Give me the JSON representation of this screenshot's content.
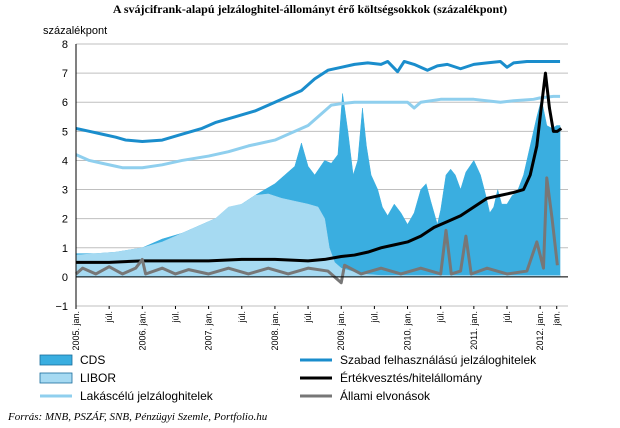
{
  "chart_data": {
    "type": "area",
    "title": "A svájcifrank-alapú jelzáloghitel-állományt érő költségsokkok (százalékpont)",
    "ylabel": "százalékpont",
    "ylim": [
      -1,
      8
    ],
    "yticks": [
      "8",
      "7",
      "6",
      "5",
      "4",
      "3",
      "2",
      "1",
      "0",
      "−1"
    ],
    "xlim": [
      2005.0,
      2012.42
    ],
    "xticks": [
      {
        "x": 2005.0,
        "label": "2005. jan."
      },
      {
        "x": 2005.5,
        "label": "júl."
      },
      {
        "x": 2006.0,
        "label": "2006. jan."
      },
      {
        "x": 2006.5,
        "label": "júl."
      },
      {
        "x": 2007.0,
        "label": "2007. jan."
      },
      {
        "x": 2007.5,
        "label": "júl."
      },
      {
        "x": 2008.0,
        "label": "2008. jan."
      },
      {
        "x": 2008.5,
        "label": "júl."
      },
      {
        "x": 2009.0,
        "label": "2009. jan."
      },
      {
        "x": 2009.5,
        "label": "júl."
      },
      {
        "x": 2010.0,
        "label": "2010. jan."
      },
      {
        "x": 2010.5,
        "label": "júl."
      },
      {
        "x": 2011.0,
        "label": "2011. jan."
      },
      {
        "x": 2011.5,
        "label": "júl."
      },
      {
        "x": 2012.0,
        "label": "2012. jan."
      },
      {
        "x": 2012.25,
        "label": "jan."
      }
    ],
    "grid": true,
    "legend_position": "bottom",
    "series": [
      {
        "name": "CDS",
        "kind": "area",
        "color": "#3aaee0",
        "points": [
          [
            2005.0,
            0.8
          ],
          [
            2005.3,
            0.8
          ],
          [
            2005.6,
            0.85
          ],
          [
            2006.0,
            1.0
          ],
          [
            2006.3,
            1.3
          ],
          [
            2006.6,
            1.5
          ],
          [
            2006.9,
            1.8
          ],
          [
            2007.1,
            2.0
          ],
          [
            2007.3,
            2.2
          ],
          [
            2007.5,
            2.5
          ],
          [
            2007.7,
            2.8
          ],
          [
            2007.85,
            3.0
          ],
          [
            2008.0,
            3.2
          ],
          [
            2008.15,
            3.5
          ],
          [
            2008.3,
            3.8
          ],
          [
            2008.4,
            4.6
          ],
          [
            2008.5,
            3.8
          ],
          [
            2008.6,
            3.5
          ],
          [
            2008.75,
            4.0
          ],
          [
            2008.85,
            3.9
          ],
          [
            2008.95,
            4.2
          ],
          [
            2009.02,
            6.3
          ],
          [
            2009.1,
            5.0
          ],
          [
            2009.18,
            3.5
          ],
          [
            2009.25,
            4.0
          ],
          [
            2009.32,
            5.8
          ],
          [
            2009.38,
            4.5
          ],
          [
            2009.45,
            3.5
          ],
          [
            2009.55,
            3.0
          ],
          [
            2009.62,
            2.4
          ],
          [
            2009.7,
            2.1
          ],
          [
            2009.8,
            2.5
          ],
          [
            2009.9,
            2.2
          ],
          [
            2010.0,
            1.8
          ],
          [
            2010.1,
            2.2
          ],
          [
            2010.2,
            3.0
          ],
          [
            2010.28,
            3.2
          ],
          [
            2010.35,
            2.6
          ],
          [
            2010.45,
            1.8
          ],
          [
            2010.5,
            2.3
          ],
          [
            2010.58,
            3.5
          ],
          [
            2010.65,
            3.7
          ],
          [
            2010.72,
            3.5
          ],
          [
            2010.8,
            3.0
          ],
          [
            2010.88,
            3.6
          ],
          [
            2011.0,
            4.0
          ],
          [
            2011.1,
            3.5
          ],
          [
            2011.18,
            2.8
          ],
          [
            2011.24,
            2.2
          ],
          [
            2011.3,
            2.4
          ],
          [
            2011.36,
            3.0
          ],
          [
            2011.42,
            2.5
          ],
          [
            2011.5,
            2.5
          ],
          [
            2011.58,
            2.8
          ],
          [
            2011.65,
            2.9
          ],
          [
            2011.75,
            3.5
          ],
          [
            2011.85,
            4.5
          ],
          [
            2011.95,
            5.5
          ],
          [
            2012.02,
            6.1
          ],
          [
            2012.1,
            5.2
          ],
          [
            2012.18,
            5.1
          ],
          [
            2012.25,
            5.2
          ],
          [
            2012.3,
            5.2
          ]
        ]
      },
      {
        "name": "LIBOR",
        "kind": "area",
        "color": "#a6daf2",
        "points": [
          [
            2005.0,
            0.75
          ],
          [
            2005.3,
            0.8
          ],
          [
            2005.6,
            0.85
          ],
          [
            2006.0,
            1.0
          ],
          [
            2006.3,
            1.2
          ],
          [
            2006.6,
            1.5
          ],
          [
            2006.9,
            1.8
          ],
          [
            2007.1,
            2.0
          ],
          [
            2007.3,
            2.4
          ],
          [
            2007.5,
            2.5
          ],
          [
            2007.7,
            2.8
          ],
          [
            2007.9,
            2.85
          ],
          [
            2008.1,
            2.7
          ],
          [
            2008.3,
            2.6
          ],
          [
            2008.5,
            2.5
          ],
          [
            2008.65,
            2.4
          ],
          [
            2008.75,
            2.0
          ],
          [
            2008.82,
            1.0
          ],
          [
            2008.9,
            0.5
          ],
          [
            2009.0,
            0.3
          ],
          [
            2009.3,
            0.1
          ],
          [
            2009.6,
            0.05
          ],
          [
            2010.0,
            0.05
          ],
          [
            2011.0,
            0.05
          ],
          [
            2012.0,
            0.05
          ],
          [
            2012.3,
            0.05
          ]
        ]
      },
      {
        "name": "Lakáscélú jelzáloghitelek",
        "kind": "line",
        "color": "#8fcfee",
        "points": [
          [
            2005.0,
            4.2
          ],
          [
            2005.2,
            4.0
          ],
          [
            2005.4,
            3.9
          ],
          [
            2005.6,
            3.8
          ],
          [
            2005.7,
            3.75
          ],
          [
            2006.0,
            3.75
          ],
          [
            2006.3,
            3.85
          ],
          [
            2006.6,
            4.0
          ],
          [
            2007.0,
            4.15
          ],
          [
            2007.3,
            4.3
          ],
          [
            2007.6,
            4.5
          ],
          [
            2008.0,
            4.7
          ],
          [
            2008.2,
            4.9
          ],
          [
            2008.5,
            5.2
          ],
          [
            2008.7,
            5.6
          ],
          [
            2008.85,
            5.9
          ],
          [
            2009.0,
            5.95
          ],
          [
            2009.2,
            6.0
          ],
          [
            2009.5,
            6.0
          ],
          [
            2010.0,
            6.0
          ],
          [
            2010.1,
            5.8
          ],
          [
            2010.2,
            6.0
          ],
          [
            2010.5,
            6.1
          ],
          [
            2011.0,
            6.1
          ],
          [
            2011.4,
            6.0
          ],
          [
            2011.6,
            6.05
          ],
          [
            2011.9,
            6.1
          ],
          [
            2012.0,
            6.15
          ],
          [
            2012.2,
            6.2
          ],
          [
            2012.3,
            6.2
          ]
        ]
      },
      {
        "name": "Szabad felhasználású jelzáloghitelek",
        "kind": "line",
        "color": "#1a8dcc",
        "points": [
          [
            2005.0,
            5.1
          ],
          [
            2005.2,
            5.0
          ],
          [
            2005.4,
            4.9
          ],
          [
            2005.6,
            4.8
          ],
          [
            2005.75,
            4.7
          ],
          [
            2006.0,
            4.65
          ],
          [
            2006.3,
            4.7
          ],
          [
            2006.6,
            4.9
          ],
          [
            2006.9,
            5.1
          ],
          [
            2007.1,
            5.3
          ],
          [
            2007.4,
            5.5
          ],
          [
            2007.7,
            5.7
          ],
          [
            2008.0,
            6.0
          ],
          [
            2008.2,
            6.2
          ],
          [
            2008.4,
            6.4
          ],
          [
            2008.6,
            6.8
          ],
          [
            2008.8,
            7.1
          ],
          [
            2009.0,
            7.2
          ],
          [
            2009.2,
            7.3
          ],
          [
            2009.4,
            7.35
          ],
          [
            2009.6,
            7.3
          ],
          [
            2009.7,
            7.4
          ],
          [
            2009.85,
            7.05
          ],
          [
            2009.95,
            7.4
          ],
          [
            2010.1,
            7.3
          ],
          [
            2010.3,
            7.1
          ],
          [
            2010.45,
            7.25
          ],
          [
            2010.6,
            7.3
          ],
          [
            2010.8,
            7.15
          ],
          [
            2011.0,
            7.3
          ],
          [
            2011.2,
            7.35
          ],
          [
            2011.4,
            7.4
          ],
          [
            2011.5,
            7.2
          ],
          [
            2011.6,
            7.35
          ],
          [
            2011.8,
            7.4
          ],
          [
            2012.0,
            7.4
          ],
          [
            2012.2,
            7.4
          ],
          [
            2012.3,
            7.4
          ]
        ]
      },
      {
        "name": "Értékvesztés/hitelállomány",
        "kind": "line",
        "color": "#000000",
        "points": [
          [
            2005.0,
            0.5
          ],
          [
            2005.5,
            0.5
          ],
          [
            2006.0,
            0.55
          ],
          [
            2006.5,
            0.55
          ],
          [
            2007.0,
            0.55
          ],
          [
            2007.5,
            0.6
          ],
          [
            2008.0,
            0.6
          ],
          [
            2008.5,
            0.55
          ],
          [
            2008.75,
            0.6
          ],
          [
            2009.0,
            0.7
          ],
          [
            2009.2,
            0.75
          ],
          [
            2009.4,
            0.85
          ],
          [
            2009.6,
            1.0
          ],
          [
            2009.8,
            1.1
          ],
          [
            2010.0,
            1.2
          ],
          [
            2010.2,
            1.4
          ],
          [
            2010.4,
            1.7
          ],
          [
            2010.6,
            1.9
          ],
          [
            2010.8,
            2.1
          ],
          [
            2011.0,
            2.4
          ],
          [
            2011.2,
            2.7
          ],
          [
            2011.4,
            2.8
          ],
          [
            2011.6,
            2.9
          ],
          [
            2011.75,
            3.0
          ],
          [
            2011.85,
            3.5
          ],
          [
            2011.95,
            4.5
          ],
          [
            2012.0,
            5.5
          ],
          [
            2012.08,
            7.0
          ],
          [
            2012.14,
            5.8
          ],
          [
            2012.2,
            5.0
          ],
          [
            2012.26,
            5.0
          ],
          [
            2012.32,
            5.1
          ]
        ]
      },
      {
        "name": "Állami elvonások",
        "kind": "line",
        "color": "#777777",
        "points": [
          [
            2005.0,
            0.1
          ],
          [
            2005.1,
            0.3
          ],
          [
            2005.3,
            0.1
          ],
          [
            2005.5,
            0.35
          ],
          [
            2005.7,
            0.1
          ],
          [
            2005.9,
            0.3
          ],
          [
            2006.0,
            0.6
          ],
          [
            2006.05,
            0.1
          ],
          [
            2006.3,
            0.3
          ],
          [
            2006.5,
            0.1
          ],
          [
            2006.7,
            0.25
          ],
          [
            2007.0,
            0.1
          ],
          [
            2007.3,
            0.3
          ],
          [
            2007.6,
            0.1
          ],
          [
            2007.9,
            0.3
          ],
          [
            2008.2,
            0.1
          ],
          [
            2008.5,
            0.3
          ],
          [
            2008.8,
            0.2
          ],
          [
            2009.0,
            -0.2
          ],
          [
            2009.05,
            0.4
          ],
          [
            2009.3,
            0.1
          ],
          [
            2009.6,
            0.3
          ],
          [
            2009.9,
            0.1
          ],
          [
            2010.2,
            0.3
          ],
          [
            2010.5,
            0.1
          ],
          [
            2010.58,
            1.6
          ],
          [
            2010.66,
            0.1
          ],
          [
            2010.8,
            0.2
          ],
          [
            2010.88,
            1.4
          ],
          [
            2010.96,
            0.1
          ],
          [
            2011.2,
            0.3
          ],
          [
            2011.5,
            0.1
          ],
          [
            2011.8,
            0.2
          ],
          [
            2011.95,
            1.2
          ],
          [
            2012.05,
            0.3
          ],
          [
            2012.1,
            3.4
          ],
          [
            2012.18,
            2.0
          ],
          [
            2012.26,
            0.4
          ]
        ]
      }
    ]
  },
  "legend": [
    {
      "name": "CDS",
      "swatch": "area",
      "color": "#3aaee0"
    },
    {
      "name": "LIBOR",
      "swatch": "area",
      "color": "#a6daf2"
    },
    {
      "name": "Lakáscélú jelzáloghitelek",
      "swatch": "line",
      "color": "#8fcfee"
    },
    {
      "name": "Szabad felhasználású jelzáloghitelek",
      "swatch": "line",
      "color": "#1a8dcc"
    },
    {
      "name": "Értékvesztés/hitelállomány",
      "swatch": "line",
      "color": "#000000"
    },
    {
      "name": "Állami elvonások",
      "swatch": "line",
      "color": "#777777"
    }
  ],
  "source": "Forrás: MNB, PSZÁF, SNB, Pénzügyi Szemle, Portfolio.hu"
}
